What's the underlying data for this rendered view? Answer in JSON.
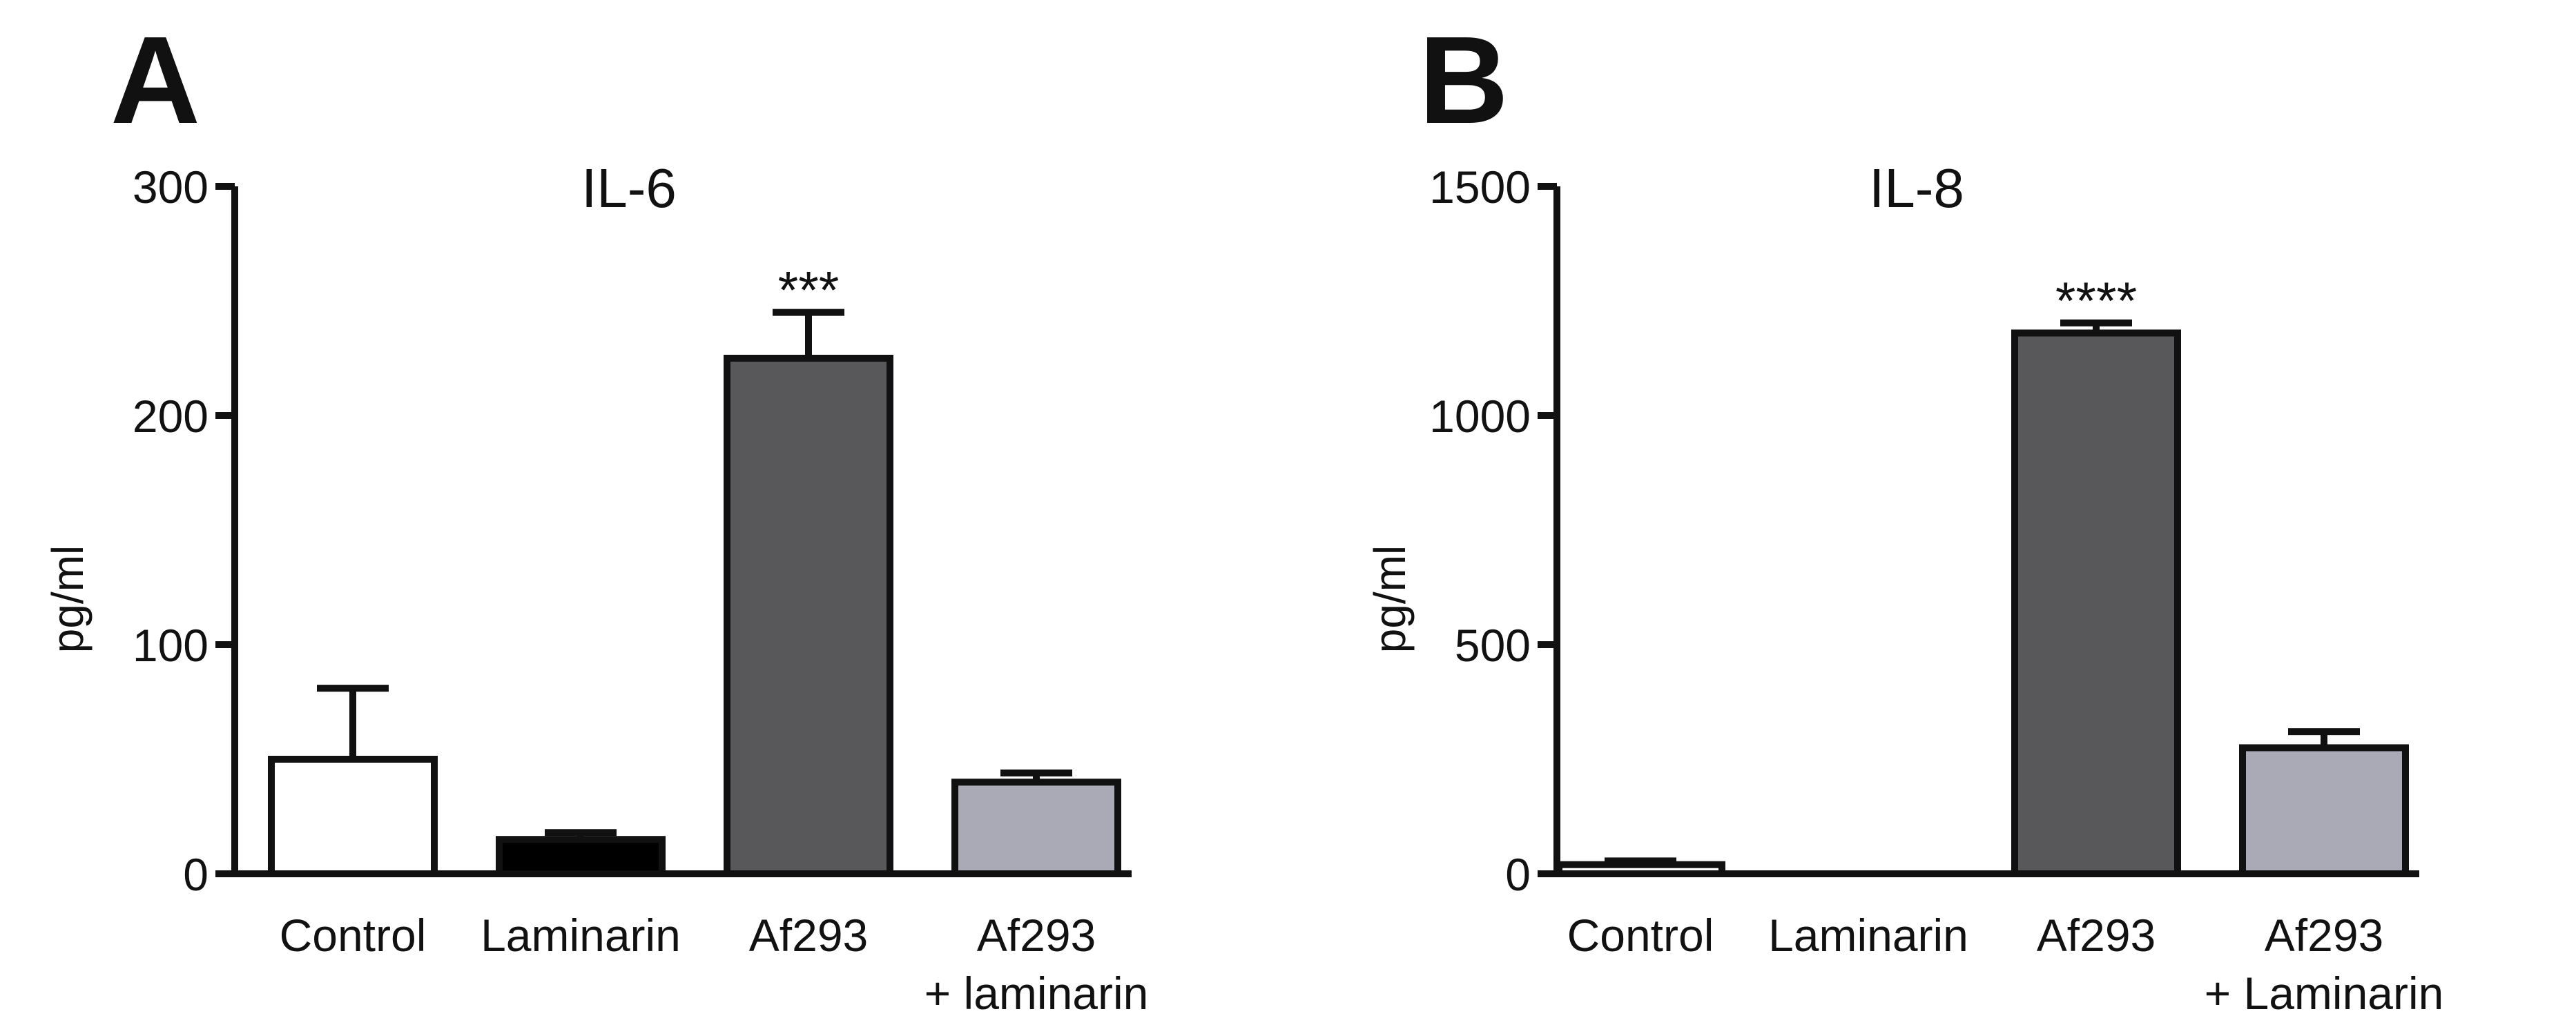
{
  "panels": [
    {
      "letter": "A"
    },
    {
      "letter": "B"
    }
  ],
  "chart_data": [
    {
      "type": "bar",
      "title": "IL-6",
      "xlabel": "",
      "ylabel": "pg/ml",
      "ylim": [
        0,
        300
      ],
      "yticks": [
        0,
        100,
        200,
        300
      ],
      "grid": false,
      "categories": [
        [
          "Control"
        ],
        [
          "Laminarin"
        ],
        [
          "Af293"
        ],
        [
          "Af293",
          "+ laminarin"
        ]
      ],
      "values": [
        50,
        15,
        225,
        40
      ],
      "errors": [
        31,
        3,
        20,
        4
      ],
      "bar_colors": [
        "#ffffff",
        "#000000",
        "#58585a",
        "#aaa9b6"
      ],
      "annotations": [
        "",
        "",
        "***",
        ""
      ]
    },
    {
      "type": "bar",
      "title": "IL-8",
      "xlabel": "",
      "ylabel": "pg/ml",
      "ylim": [
        0,
        1500
      ],
      "yticks": [
        0,
        500,
        1000,
        1500
      ],
      "grid": false,
      "categories": [
        [
          "Control"
        ],
        [
          "Laminarin"
        ],
        [
          "Af293"
        ],
        [
          "Af293",
          "+ Laminarin"
        ]
      ],
      "values": [
        20,
        0,
        1180,
        275
      ],
      "errors": [
        8,
        0,
        22,
        35
      ],
      "bar_colors": [
        "#ffffff",
        "#000000",
        "#58585a",
        "#aaa9b6"
      ],
      "annotations": [
        "",
        "",
        "****",
        ""
      ]
    }
  ]
}
